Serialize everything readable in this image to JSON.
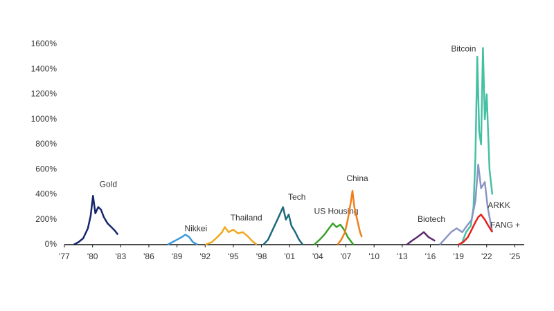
{
  "chart_data": {
    "type": "line",
    "xlim": [
      1977,
      2026
    ],
    "ylim": [
      0,
      1600
    ],
    "xticks": [
      {
        "value": 1977,
        "label": "'77"
      },
      {
        "value": 1980,
        "label": "'80"
      },
      {
        "value": 1983,
        "label": "'83"
      },
      {
        "value": 1986,
        "label": "'86"
      },
      {
        "value": 1989,
        "label": "'89"
      },
      {
        "value": 1992,
        "label": "'92"
      },
      {
        "value": 1995,
        "label": "'95"
      },
      {
        "value": 1998,
        "label": "'98"
      },
      {
        "value": 2001,
        "label": "'01"
      },
      {
        "value": 2004,
        "label": "'04"
      },
      {
        "value": 2007,
        "label": "'07"
      },
      {
        "value": 2010,
        "label": "'10"
      },
      {
        "value": 2013,
        "label": "'13"
      },
      {
        "value": 2016,
        "label": "'16"
      },
      {
        "value": 2019,
        "label": "'19"
      },
      {
        "value": 2022,
        "label": "'22"
      },
      {
        "value": 2025,
        "label": "'25"
      }
    ],
    "yticks": [
      {
        "value": 0,
        "label": "0%"
      },
      {
        "value": 200,
        "label": "200%"
      },
      {
        "value": 400,
        "label": "400%"
      },
      {
        "value": 600,
        "label": "600%"
      },
      {
        "value": 800,
        "label": "800%"
      },
      {
        "value": 1000,
        "label": "1000%"
      },
      {
        "value": 1200,
        "label": "1200%"
      },
      {
        "value": 1400,
        "label": "1400%"
      },
      {
        "value": 1600,
        "label": "1600%"
      }
    ],
    "grid": false,
    "series": [
      {
        "name": "Gold",
        "color": "#16266b",
        "x": [
          1978.0,
          1978.5,
          1979.0,
          1979.5,
          1979.8,
          1980.05,
          1980.3,
          1980.6,
          1980.9,
          1981.2,
          1981.6,
          1982.0,
          1982.4,
          1982.7
        ],
        "values": [
          0,
          20,
          50,
          130,
          230,
          390,
          250,
          300,
          280,
          220,
          170,
          140,
          110,
          80
        ]
      },
      {
        "name": "Nikkei",
        "color": "#3a9ad9",
        "x": [
          1988.0,
          1988.5,
          1989.0,
          1989.5,
          1989.9,
          1990.3,
          1990.7,
          1991.2
        ],
        "values": [
          0,
          20,
          40,
          60,
          80,
          60,
          20,
          0
        ]
      },
      {
        "name": "Thailand",
        "color": "#f0a820",
        "x": [
          1992.0,
          1992.7,
          1993.3,
          1993.8,
          1994.1,
          1994.5,
          1995.0,
          1995.5,
          1996.0,
          1996.5,
          1997.0,
          1997.5
        ],
        "values": [
          0,
          20,
          60,
          100,
          140,
          100,
          120,
          90,
          100,
          70,
          30,
          0
        ]
      },
      {
        "name": "Tech",
        "color": "#1f6a7d",
        "x": [
          1998.2,
          1998.7,
          1999.2,
          1999.7,
          2000.0,
          2000.3,
          2000.6,
          2000.9,
          2001.2,
          2001.6,
          2002.0,
          2002.4
        ],
        "values": [
          0,
          40,
          120,
          200,
          250,
          300,
          200,
          240,
          150,
          100,
          40,
          0
        ]
      },
      {
        "name": "US Housing",
        "color": "#3aa02a",
        "x": [
          2003.6,
          2004.2,
          2004.7,
          2005.2,
          2005.6,
          2006.0,
          2006.4,
          2006.8,
          2007.2,
          2007.8
        ],
        "values": [
          0,
          40,
          80,
          130,
          170,
          140,
          160,
          120,
          60,
          0
        ]
      },
      {
        "name": "China",
        "color": "#f07f1a",
        "x": [
          2006.1,
          2006.5,
          2006.9,
          2007.2,
          2007.5,
          2007.7,
          2007.9,
          2008.2,
          2008.5,
          2008.7
        ],
        "values": [
          0,
          40,
          100,
          200,
          330,
          430,
          300,
          200,
          100,
          60
        ]
      },
      {
        "name": "Biotech",
        "color": "#5a2a6a",
        "x": [
          2013.5,
          2014.0,
          2014.6,
          2015.3,
          2015.8,
          2016.5
        ],
        "values": [
          0,
          30,
          60,
          100,
          60,
          30
        ]
      },
      {
        "name": "Bitcoin",
        "color": "#45c0a2",
        "x": [
          2019.3,
          2019.8,
          2020.3,
          2020.6,
          2020.8,
          2021.0,
          2021.2,
          2021.4,
          2021.6,
          2021.8,
          2022.0,
          2022.3,
          2022.6
        ],
        "values": [
          0,
          100,
          150,
          300,
          700,
          1500,
          900,
          800,
          1570,
          1000,
          1200,
          600,
          400
        ]
      },
      {
        "name": "ARKK",
        "color": "#8a96c4",
        "x": [
          2017.0,
          2017.6,
          2018.2,
          2018.8,
          2019.4,
          2019.9,
          2020.4,
          2020.8,
          2021.1,
          2021.4,
          2021.8,
          2022.1,
          2022.6
        ],
        "values": [
          0,
          50,
          100,
          130,
          100,
          150,
          200,
          350,
          640,
          450,
          500,
          300,
          100
        ]
      },
      {
        "name": "FANG +",
        "color": "#e8201a",
        "x": [
          2019.0,
          2019.5,
          2020.0,
          2020.4,
          2020.8,
          2021.1,
          2021.4,
          2021.8,
          2022.1,
          2022.6
        ],
        "values": [
          0,
          20,
          60,
          120,
          180,
          220,
          240,
          200,
          160,
          100
        ]
      }
    ]
  }
}
